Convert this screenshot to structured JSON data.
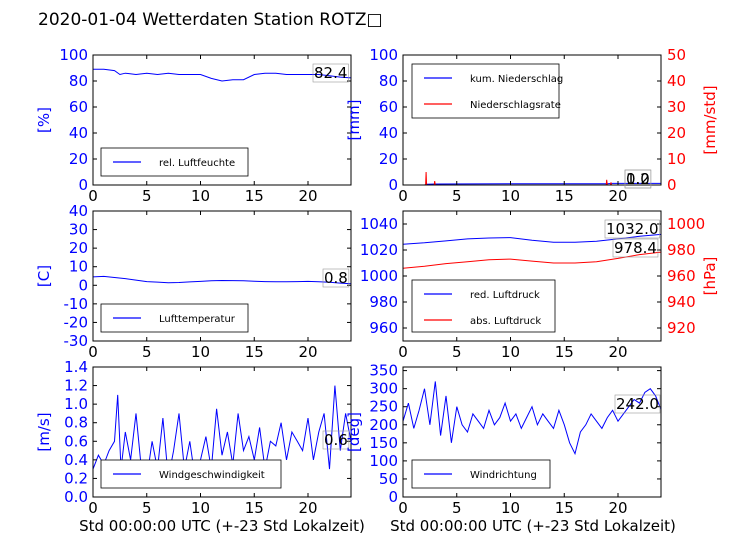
{
  "page_title": "2020-01-04 Wetterdaten Station ROTZ□",
  "colors": {
    "left_axis": "#0000ff",
    "right_axis": "#ff0000",
    "line1": "#0000ff",
    "line2": "#ff0000",
    "frame": "#000000"
  },
  "chart_data": [
    {
      "type": "line",
      "ylabel": "[%]",
      "xlim": [
        0,
        24
      ],
      "ylim": [
        0,
        100
      ],
      "xticks": [
        0,
        5,
        10,
        15,
        20
      ],
      "yticks": [
        0,
        20,
        40,
        60,
        80,
        100
      ],
      "series": [
        {
          "name": "rel. Luftfeuchte",
          "x": [
            0,
            1,
            2,
            2.5,
            3,
            4,
            5,
            6,
            7,
            8,
            9,
            10,
            11,
            12,
            13,
            14,
            15,
            16,
            17,
            18,
            19,
            20,
            21,
            22,
            23,
            24
          ],
          "y": [
            89,
            89,
            88,
            85,
            86,
            85,
            86,
            85,
            86,
            85,
            85,
            85,
            82,
            80,
            81,
            81,
            85,
            86,
            86,
            85,
            85,
            85,
            85,
            84,
            83,
            82.4
          ]
        }
      ],
      "current_label": "82.4"
    },
    {
      "type": "line",
      "ylabel": "[mm]",
      "ylabel_right": "[mm/std]",
      "xlim": [
        0,
        24
      ],
      "ylim": [
        0,
        100
      ],
      "ylim_right": [
        0,
        50
      ],
      "xticks": [
        0,
        5,
        10,
        15,
        20
      ],
      "yticks": [
        0,
        20,
        40,
        60,
        80,
        100
      ],
      "yticks_right": [
        0,
        10,
        20,
        30,
        40,
        50
      ],
      "series": [
        {
          "name": "kum. Niederschlag",
          "axis": "left",
          "x": [
            0,
            2,
            2.2,
            3,
            10,
            19,
            19.5,
            24
          ],
          "y": [
            0,
            0,
            0.5,
            0.8,
            1.0,
            1.0,
            1.2,
            1.2
          ]
        },
        {
          "name": "Niederschlagsrate",
          "axis": "right",
          "x": [
            0,
            2.1,
            2.15,
            2.2,
            2.25,
            2.9,
            2.95,
            3.0,
            3.05,
            18.9,
            18.95,
            19.0,
            19.05,
            19.3,
            19.35,
            19.4,
            19.45,
            24
          ],
          "y": [
            0,
            0,
            5,
            0,
            0,
            0,
            1.5,
            0,
            0,
            0,
            2,
            0,
            0,
            0,
            1,
            0,
            0,
            0
          ]
        }
      ],
      "current_label": "1.2",
      "current_label_right": "0.0"
    },
    {
      "type": "line",
      "ylabel": "[C]",
      "xlim": [
        0,
        24
      ],
      "ylim": [
        -30,
        40
      ],
      "xticks": [
        0,
        5,
        10,
        15,
        20
      ],
      "yticks": [
        -30,
        -20,
        -10,
        0,
        10,
        20,
        30,
        40
      ],
      "series": [
        {
          "name": "Lufttemperatur",
          "x": [
            0,
            1,
            2,
            3,
            4,
            5,
            6,
            7,
            8,
            9,
            10,
            11,
            12,
            13,
            14,
            15,
            16,
            17,
            18,
            19,
            20,
            21,
            22,
            23,
            24
          ],
          "y": [
            4.5,
            4.8,
            4.2,
            3.6,
            2.8,
            2.0,
            1.7,
            1.4,
            1.5,
            1.8,
            2.1,
            2.4,
            2.6,
            2.5,
            2.4,
            2.2,
            2.0,
            1.9,
            1.9,
            2.0,
            2.1,
            1.9,
            1.6,
            1.2,
            0.8
          ]
        }
      ],
      "current_label": "0.8"
    },
    {
      "type": "line",
      "ylabel_right": "[hPa]",
      "xlim": [
        0,
        24
      ],
      "ylim": [
        950,
        1050
      ],
      "ylim_right": [
        910,
        1010
      ],
      "xticks": [
        0,
        5,
        10,
        15,
        20
      ],
      "yticks": [
        960,
        980,
        1000,
        1020,
        1040
      ],
      "yticks_right": [
        920,
        940,
        960,
        980,
        1000
      ],
      "series": [
        {
          "name": "red. Luftdruck",
          "axis": "left",
          "x": [
            0,
            2,
            4,
            6,
            8,
            10,
            12,
            14,
            16,
            18,
            20,
            22,
            24
          ],
          "y": [
            1024.5,
            1025.5,
            1027,
            1028.5,
            1029.2,
            1029.5,
            1027.5,
            1026,
            1026,
            1026.8,
            1028.5,
            1030.5,
            1032.0
          ]
        },
        {
          "name": "abs. Luftdruck",
          "axis": "right",
          "x": [
            0,
            2,
            4,
            6,
            8,
            10,
            12,
            14,
            16,
            18,
            20,
            22,
            24
          ],
          "y": [
            966,
            967.5,
            969.5,
            971,
            972.5,
            973,
            971.5,
            970,
            970,
            971,
            973.5,
            976.5,
            978.4
          ]
        }
      ],
      "current_label": "1032.0",
      "current_label_right": "978.4"
    },
    {
      "type": "line",
      "ylabel": "[m/s]",
      "xlim": [
        0,
        24
      ],
      "ylim": [
        0,
        1.4
      ],
      "xticks": [
        0,
        5,
        10,
        15,
        20
      ],
      "yticks": [
        0.0,
        0.2,
        0.4,
        0.6,
        0.8,
        1.0,
        1.2,
        1.4
      ],
      "series": [
        {
          "name": "Windgeschwindigkeit",
          "x": [
            0,
            0.5,
            1,
            1.5,
            2,
            2.3,
            2.6,
            3,
            3.5,
            4,
            4.5,
            5,
            5.5,
            6,
            6.5,
            7,
            7.5,
            8,
            8.5,
            9,
            9.5,
            10,
            10.5,
            11,
            11.5,
            12,
            12.5,
            13,
            13.5,
            14,
            14.5,
            15,
            15.5,
            16,
            16.5,
            17,
            17.5,
            18,
            18.5,
            19,
            19.5,
            20,
            20.5,
            21,
            21.5,
            22,
            22.5,
            23,
            23.5,
            24
          ],
          "y": [
            0.3,
            0.45,
            0.35,
            0.5,
            0.6,
            1.1,
            0.3,
            0.7,
            0.4,
            0.9,
            0.3,
            0.2,
            0.6,
            0.3,
            0.85,
            0.2,
            0.5,
            0.9,
            0.3,
            0.6,
            0.2,
            0.4,
            0.65,
            0.3,
            0.95,
            0.45,
            0.7,
            0.35,
            0.9,
            0.5,
            0.65,
            0.4,
            0.75,
            0.3,
            0.6,
            0.55,
            0.8,
            0.4,
            0.7,
            0.6,
            0.5,
            0.85,
            0.4,
            0.7,
            0.9,
            0.3,
            1.2,
            0.5,
            0.9,
            0.6
          ]
        }
      ],
      "current_label": "0.6"
    },
    {
      "type": "line",
      "ylabel": "[deg]",
      "xlim": [
        0,
        24
      ],
      "ylim": [
        0,
        360
      ],
      "xticks": [
        0,
        5,
        10,
        15,
        20
      ],
      "yticks": [
        0,
        50,
        100,
        150,
        200,
        250,
        300,
        350
      ],
      "series": [
        {
          "name": "Windrichtung",
          "x": [
            0,
            0.5,
            1,
            1.5,
            2,
            2.5,
            3,
            3.5,
            4,
            4.5,
            5,
            5.5,
            6,
            6.5,
            7,
            7.5,
            8,
            8.5,
            9,
            9.5,
            10,
            10.5,
            11,
            11.5,
            12,
            12.5,
            13,
            13.5,
            14,
            14.5,
            15,
            15.5,
            16,
            16.5,
            17,
            17.5,
            18,
            18.5,
            19,
            19.5,
            20,
            20.5,
            21,
            21.5,
            22,
            22.5,
            23,
            23.5,
            24
          ],
          "y": [
            210,
            260,
            190,
            240,
            300,
            200,
            320,
            170,
            280,
            150,
            250,
            200,
            180,
            230,
            210,
            190,
            240,
            200,
            220,
            260,
            210,
            230,
            190,
            220,
            250,
            200,
            230,
            210,
            190,
            240,
            200,
            150,
            120,
            180,
            200,
            230,
            210,
            190,
            220,
            240,
            210,
            230,
            250,
            270,
            260,
            290,
            300,
            280,
            242
          ]
        }
      ],
      "current_label": "242.0"
    }
  ],
  "xaxis_label": "Std 00:00:00 UTC (+-23 Std Lokalzeit)"
}
